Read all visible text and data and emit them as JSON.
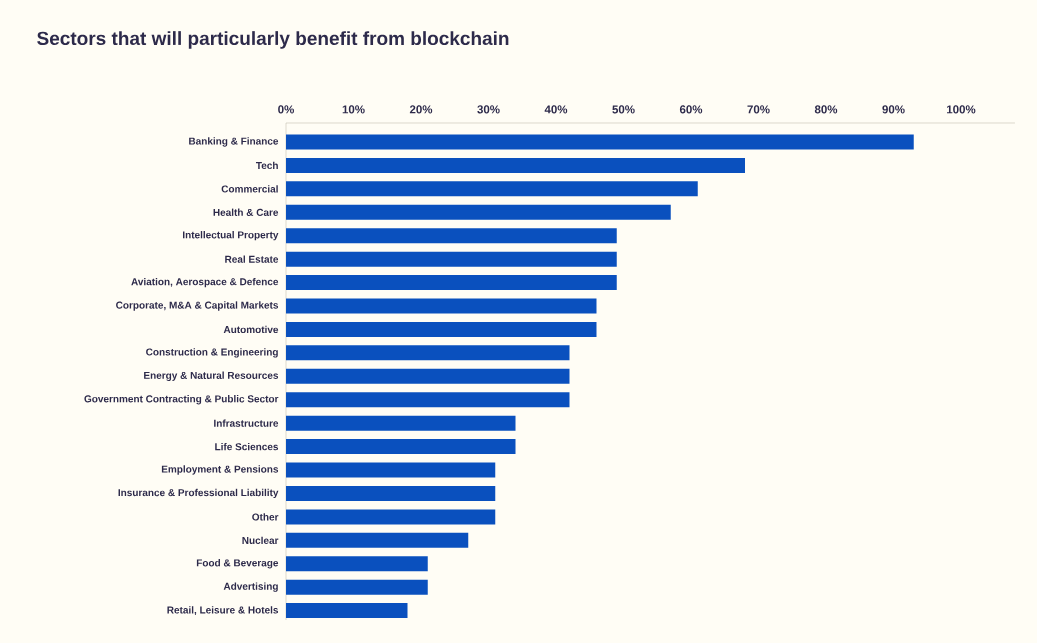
{
  "chart_data": {
    "type": "bar",
    "orientation": "horizontal",
    "title": "Sectors that will particularly benefit from blockchain",
    "categories": [
      "Banking & Finance",
      "Tech",
      "Commercial",
      "Health & Care",
      "Intellectual Property",
      "Real Estate",
      "Aviation, Aerospace & Defence",
      "Corporate, M&A & Capital Markets",
      "Automotive",
      "Construction & Engineering",
      "Energy & Natural Resources",
      "Government Contracting & Public Sector",
      "Infrastructure",
      "Life Sciences",
      "Employment & Pensions",
      "Insurance & Professional Liability",
      "Other",
      "Nuclear",
      "Food & Beverage",
      "Advertising",
      "Retail, Leisure & Hotels"
    ],
    "values": [
      93,
      68,
      61,
      57,
      49,
      49,
      49,
      46,
      46,
      42,
      42,
      42,
      34,
      34,
      31,
      31,
      31,
      27,
      21,
      21,
      18
    ],
    "color": "#0a50be",
    "xlim": [
      0,
      108
    ],
    "xticks": [
      {
        "value": 0,
        "label": "0%"
      },
      {
        "value": 10,
        "label": "10%"
      },
      {
        "value": 20,
        "label": "20%"
      },
      {
        "value": 30,
        "label": "30%"
      },
      {
        "value": 40,
        "label": "40%"
      },
      {
        "value": 50,
        "label": "50%"
      },
      {
        "value": 60,
        "label": "60%"
      },
      {
        "value": 70,
        "label": "70%"
      },
      {
        "value": 80,
        "label": "80%"
      },
      {
        "value": 90,
        "label": "90%"
      },
      {
        "value": 100,
        "label": "100%"
      }
    ]
  }
}
